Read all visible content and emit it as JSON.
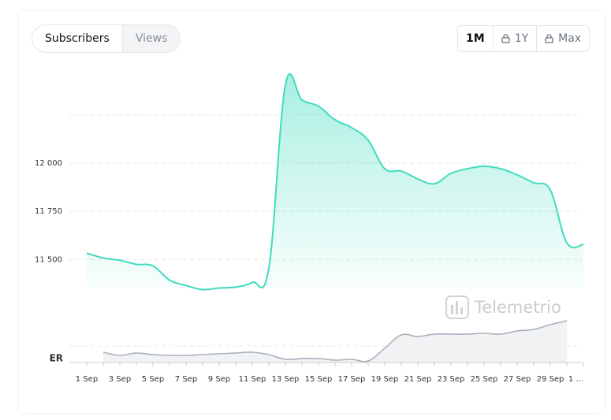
{
  "buttons": {
    "metric": [
      "Subscribers",
      "Views"
    ],
    "range": [
      "1M",
      "1Y",
      "Max"
    ]
  },
  "watermark": "Telemetrio",
  "chart_data": {
    "type": "area",
    "categories": [
      "1 Sep",
      null,
      "3 Sep",
      null,
      "5 Sep",
      null,
      "7 Sep",
      null,
      "9 Sep",
      null,
      "11 Sep",
      null,
      "13 Sep",
      null,
      "15 Sep",
      null,
      "17 Sep",
      null,
      "19 Sep",
      null,
      "21 Sep",
      null,
      "23 Sep",
      null,
      "25 Sep",
      null,
      "27 Sep",
      null,
      "29 Sep",
      null,
      "1 ..."
    ],
    "series": [
      {
        "name": "Subscribers",
        "color": "#3fdcbd",
        "values": [
          11533,
          11508,
          11496,
          11475,
          11467,
          11393,
          11365,
          11344,
          11352,
          11357,
          11381,
          11455,
          12406,
          12328,
          12295,
          12225,
          12184,
          12119,
          11971,
          11959,
          11918,
          11893,
          11947,
          11971,
          11984,
          11971,
          11939,
          11898,
          11861,
          11586,
          11578
        ]
      }
    ],
    "ylim": [
      11350,
      12450
    ],
    "yticks": [
      {
        "value": 11500,
        "label": "11 500"
      },
      {
        "value": 11750,
        "label": "11 750"
      },
      {
        "value": 12000,
        "label": "12 000"
      },
      {
        "value": 12250,
        "label": null
      }
    ],
    "grid": true,
    "er": {
      "label": "ER",
      "color": "#a9b0bb",
      "values": [
        null,
        13,
        9,
        12,
        10,
        9,
        9,
        10,
        11,
        12,
        13,
        10,
        4,
        5,
        5,
        3,
        4,
        2,
        18,
        35,
        33,
        36,
        36,
        36,
        37,
        36,
        40,
        42,
        48,
        53,
        null
      ],
      "ylim": [
        0,
        60
      ],
      "yticks": [
        21
      ]
    }
  }
}
